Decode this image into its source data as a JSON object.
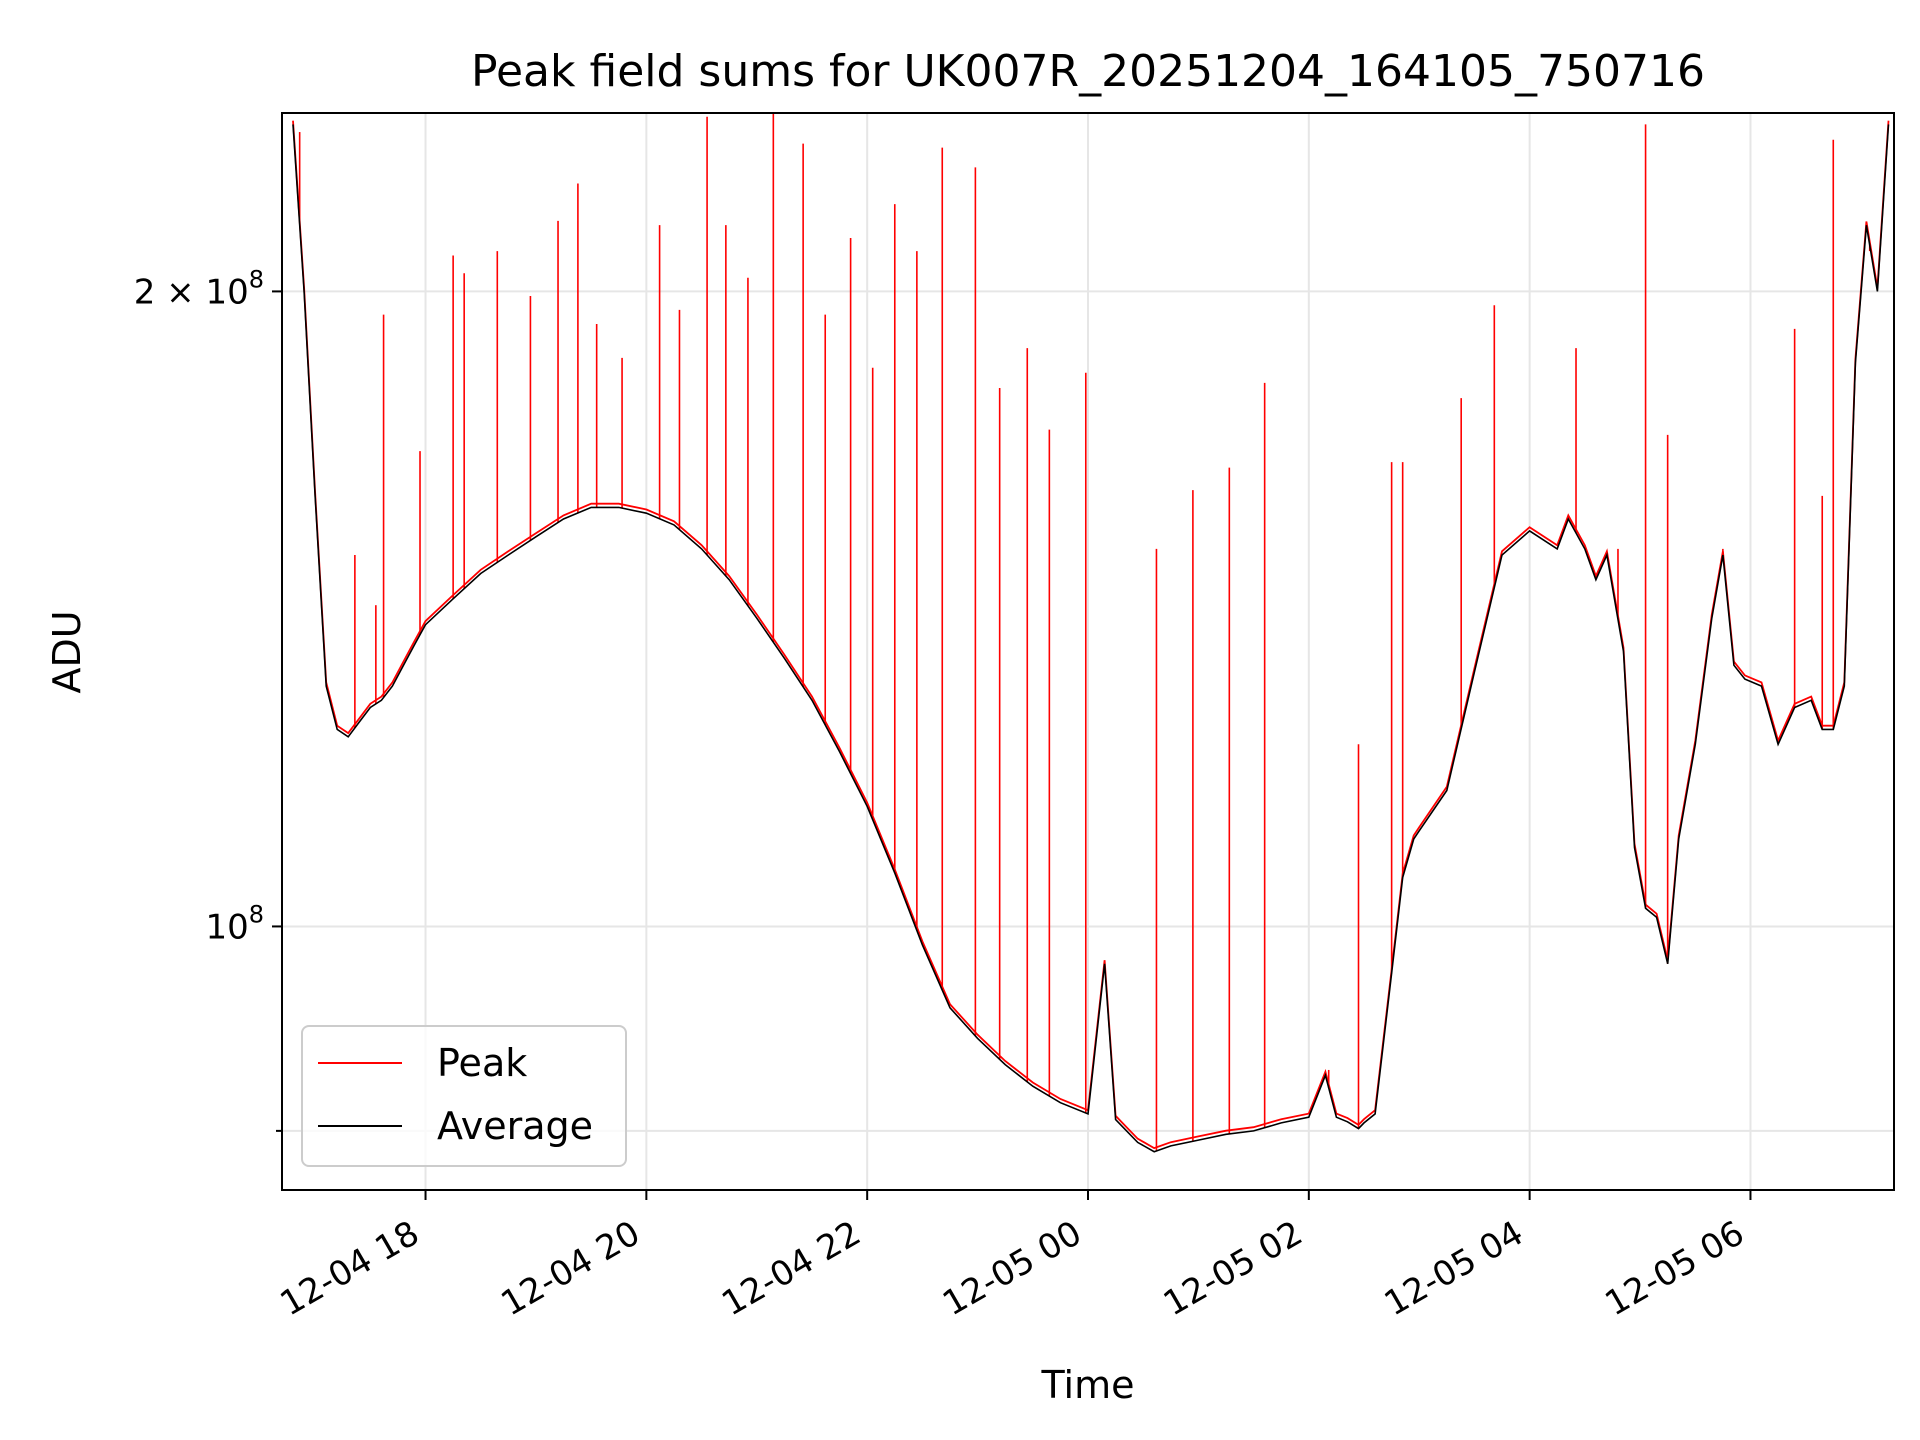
{
  "chart_data": {
    "type": "line",
    "title": "Peak field sums for UK007R_20251204_164105_750716",
    "xlabel": "Time",
    "ylabel": "ADU",
    "x_ticks": [
      "12-04 18",
      "12-04 20",
      "12-04 22",
      "12-05 00",
      "12-05 02",
      "12-05 04",
      "12-05 06"
    ],
    "y_scale": "log",
    "y_ticks": [
      {
        "value": 100000000,
        "label_base": "10",
        "label_exp": "8",
        "label_mult": ""
      },
      {
        "value": 200000000,
        "label_base": "10",
        "label_exp": "8",
        "label_mult": "2 × "
      }
    ],
    "xlim_hours": [
      16.7,
      31.3
    ],
    "ylim": [
      75000000,
      243000000
    ],
    "grid": true,
    "legend_position": "lower-left",
    "series": [
      {
        "name": "Peak",
        "color": "#ff0000",
        "x_hours": [
          16.8,
          16.9,
          17.0,
          17.1,
          17.2,
          17.3,
          17.4,
          17.5,
          17.6,
          17.7,
          17.8,
          17.9,
          18.0,
          18.25,
          18.5,
          18.75,
          19.0,
          19.25,
          19.5,
          19.75,
          20.0,
          20.25,
          20.5,
          20.75,
          21.0,
          21.25,
          21.5,
          21.75,
          22.0,
          22.25,
          22.5,
          22.75,
          23.0,
          23.25,
          23.5,
          23.75,
          24.0,
          24.15,
          24.25,
          24.35,
          24.45,
          24.6,
          24.75,
          25.0,
          25.25,
          25.5,
          25.75,
          26.0,
          26.15,
          26.25,
          26.35,
          26.45,
          26.5,
          26.6,
          26.75,
          26.85,
          26.95,
          27.0,
          27.25,
          27.5,
          27.75,
          28.0,
          28.25,
          28.35,
          28.5,
          28.6,
          28.7,
          28.85,
          28.95,
          29.05,
          29.15,
          29.25,
          29.35,
          29.5,
          29.65,
          29.75,
          29.85,
          29.95,
          30.1,
          30.25,
          30.4,
          30.55,
          30.65,
          30.75,
          30.85,
          30.95,
          31.05,
          31.15,
          31.25
        ],
        "y_values": [
          240000000,
          200000000,
          160000000,
          130000000,
          124000000,
          123000000,
          125000000,
          127000000,
          128000000,
          130000000,
          133000000,
          136000000,
          139000000,
          143000000,
          147000000,
          150000000,
          153000000,
          156000000,
          158000000,
          158000000,
          157000000,
          155000000,
          151000000,
          146000000,
          140000000,
          134000000,
          128000000,
          121000000,
          114000000,
          106000000,
          98000000,
          91500000,
          88500000,
          86000000,
          84000000,
          82500000,
          81500000,
          96000000,
          81000000,
          80000000,
          79000000,
          78200000,
          78700000,
          79200000,
          79700000,
          80000000,
          80700000,
          81200000,
          85000000,
          81200000,
          80800000,
          80200000,
          80700000,
          81500000,
          95000000,
          105500000,
          110000000,
          111000000,
          116000000,
          132000000,
          150000000,
          154000000,
          151000000,
          156000000,
          151000000,
          146000000,
          150000000,
          135000000,
          109000000,
          102000000,
          101000000,
          96000000,
          110000000,
          122000000,
          140000000,
          150000000,
          133000000,
          131000000,
          130000000,
          122000000,
          127000000,
          128000000,
          124000000,
          124000000,
          130000000,
          185000000,
          215000000,
          200000000,
          240000000
        ],
        "spikes": [
          {
            "x": 16.86,
            "y": 238000000
          },
          {
            "x": 17.36,
            "y": 150000000
          },
          {
            "x": 17.55,
            "y": 142000000
          },
          {
            "x": 17.62,
            "y": 195000000
          },
          {
            "x": 17.95,
            "y": 168000000
          },
          {
            "x": 18.25,
            "y": 208000000
          },
          {
            "x": 18.35,
            "y": 204000000
          },
          {
            "x": 18.65,
            "y": 209000000
          },
          {
            "x": 18.95,
            "y": 199000000
          },
          {
            "x": 19.2,
            "y": 216000000
          },
          {
            "x": 19.38,
            "y": 225000000
          },
          {
            "x": 19.55,
            "y": 193000000
          },
          {
            "x": 19.78,
            "y": 186000000
          },
          {
            "x": 20.12,
            "y": 215000000
          },
          {
            "x": 20.3,
            "y": 196000000
          },
          {
            "x": 20.55,
            "y": 242000000
          },
          {
            "x": 20.72,
            "y": 215000000
          },
          {
            "x": 20.92,
            "y": 203000000
          },
          {
            "x": 21.15,
            "y": 243000000
          },
          {
            "x": 21.42,
            "y": 235000000
          },
          {
            "x": 21.62,
            "y": 195000000
          },
          {
            "x": 21.85,
            "y": 212000000
          },
          {
            "x": 22.05,
            "y": 184000000
          },
          {
            "x": 22.25,
            "y": 220000000
          },
          {
            "x": 22.45,
            "y": 209000000
          },
          {
            "x": 22.68,
            "y": 234000000
          },
          {
            "x": 22.98,
            "y": 229000000
          },
          {
            "x": 23.2,
            "y": 180000000
          },
          {
            "x": 23.45,
            "y": 188000000
          },
          {
            "x": 23.65,
            "y": 172000000
          },
          {
            "x": 23.98,
            "y": 183000000
          },
          {
            "x": 24.62,
            "y": 151000000
          },
          {
            "x": 24.95,
            "y": 161000000
          },
          {
            "x": 25.28,
            "y": 165000000
          },
          {
            "x": 25.6,
            "y": 181000000
          },
          {
            "x": 26.18,
            "y": 85500000
          },
          {
            "x": 26.45,
            "y": 122000000
          },
          {
            "x": 26.75,
            "y": 166000000
          },
          {
            "x": 26.85,
            "y": 166000000
          },
          {
            "x": 27.38,
            "y": 178000000
          },
          {
            "x": 27.68,
            "y": 197000000
          },
          {
            "x": 28.42,
            "y": 188000000
          },
          {
            "x": 28.8,
            "y": 151000000
          },
          {
            "x": 29.05,
            "y": 240000000
          },
          {
            "x": 29.25,
            "y": 171000000
          },
          {
            "x": 29.75,
            "y": 151000000
          },
          {
            "x": 30.4,
            "y": 192000000
          },
          {
            "x": 30.65,
            "y": 160000000
          },
          {
            "x": 30.75,
            "y": 236000000
          },
          {
            "x": 31.08,
            "y": 209000000
          }
        ]
      },
      {
        "name": "Average",
        "color": "#000000",
        "x_hours": [
          16.8,
          16.9,
          17.0,
          17.1,
          17.2,
          17.3,
          17.4,
          17.5,
          17.6,
          17.7,
          17.8,
          17.9,
          18.0,
          18.25,
          18.5,
          18.75,
          19.0,
          19.25,
          19.5,
          19.75,
          20.0,
          20.25,
          20.5,
          20.75,
          21.0,
          21.25,
          21.5,
          21.75,
          22.0,
          22.25,
          22.5,
          22.75,
          23.0,
          23.25,
          23.5,
          23.75,
          24.0,
          24.15,
          24.25,
          24.35,
          24.45,
          24.6,
          24.75,
          25.0,
          25.25,
          25.5,
          25.75,
          26.0,
          26.15,
          26.25,
          26.35,
          26.45,
          26.5,
          26.6,
          26.75,
          26.85,
          26.95,
          27.0,
          27.25,
          27.5,
          27.75,
          28.0,
          28.25,
          28.35,
          28.5,
          28.6,
          28.7,
          28.85,
          28.95,
          29.05,
          29.15,
          29.25,
          29.35,
          29.5,
          29.65,
          29.75,
          29.85,
          29.95,
          30.1,
          30.25,
          30.4,
          30.55,
          30.65,
          30.75,
          30.85,
          30.95,
          31.05,
          31.15,
          31.25
        ],
        "y_values": [
          240000000,
          200000000,
          160000000,
          130000000,
          124000000,
          123000000,
          125000000,
          127000000,
          128000000,
          130000000,
          133000000,
          136000000,
          139000000,
          143000000,
          147000000,
          150000000,
          153000000,
          156000000,
          158000000,
          158000000,
          157000000,
          155000000,
          151000000,
          146000000,
          140000000,
          134000000,
          128000000,
          121000000,
          114000000,
          106000000,
          98000000,
          91500000,
          88500000,
          86000000,
          84000000,
          82500000,
          81500000,
          96000000,
          81000000,
          80000000,
          79000000,
          78200000,
          78700000,
          79200000,
          79700000,
          80000000,
          80700000,
          81200000,
          85000000,
          81200000,
          80800000,
          80200000,
          80700000,
          81500000,
          95000000,
          105500000,
          110000000,
          111000000,
          116000000,
          132000000,
          150000000,
          154000000,
          151000000,
          156000000,
          151000000,
          146000000,
          150000000,
          135000000,
          109000000,
          102000000,
          101000000,
          96000000,
          110000000,
          122000000,
          140000000,
          150000000,
          133000000,
          131000000,
          130000000,
          122000000,
          127000000,
          128000000,
          124000000,
          124000000,
          130000000,
          185000000,
          215000000,
          200000000,
          240000000
        ]
      }
    ]
  }
}
